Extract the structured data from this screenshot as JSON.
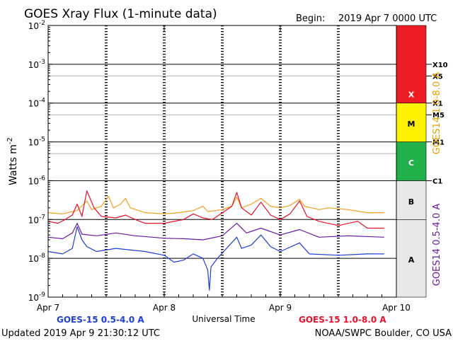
{
  "chart_data": {
    "type": "line",
    "title": "GOES Xray Flux (1-minute data)",
    "begin_label": "Begin:",
    "begin_value": "2019 Apr 7 0000 UTC",
    "ylabel": "Watts m",
    "ylabel_sup": "-2",
    "xlabel": "Universal Time",
    "yscale": "log",
    "ylim": [
      1e-09,
      0.01
    ],
    "xlim": [
      "2019-04-07T00:00",
      "2019-04-10T00:00"
    ],
    "y_ticks": [
      {
        "value": 1e-09,
        "label": "10",
        "exp": "-9"
      },
      {
        "value": 1e-08,
        "label": "10",
        "exp": "-8"
      },
      {
        "value": 1e-07,
        "label": "10",
        "exp": "-7"
      },
      {
        "value": 1e-06,
        "label": "10",
        "exp": "-6"
      },
      {
        "value": 1e-05,
        "label": "10",
        "exp": "-5"
      },
      {
        "value": 0.0001,
        "label": "10",
        "exp": "-4"
      },
      {
        "value": 0.001,
        "label": "10",
        "exp": "-3"
      },
      {
        "value": 0.01,
        "label": "10",
        "exp": "-2"
      }
    ],
    "x_ticks": [
      {
        "value": "2019-04-07T00:00",
        "label": "Apr 7"
      },
      {
        "value": "2019-04-08T00:00",
        "label": "Apr 8"
      },
      {
        "value": "2019-04-09T00:00",
        "label": "Apr 9"
      },
      {
        "value": "2019-04-10T00:00",
        "label": "Apr 10"
      }
    ],
    "flare_classes": [
      {
        "label": "A",
        "from": 1e-09,
        "to": 1e-07,
        "color": "#e8e8e8"
      },
      {
        "label": "B",
        "from": 1e-07,
        "to": 1e-06,
        "color": "#e8e8e8"
      },
      {
        "label": "C",
        "from": 1e-06,
        "to": 1e-05,
        "color": "#22b04a"
      },
      {
        "label": "M",
        "from": 1e-05,
        "to": 0.0001,
        "color": "#fff200"
      },
      {
        "label": "X",
        "from": 0.0001,
        "to": 0.01,
        "color": "#ee1c24"
      }
    ],
    "class_markers": [
      {
        "label": "X10",
        "value": 0.001
      },
      {
        "label": "X5",
        "value": 0.0005
      },
      {
        "label": "X1",
        "value": 0.0001
      },
      {
        "label": "M5",
        "value": 5e-05
      },
      {
        "label": "M1",
        "value": 1e-05
      },
      {
        "label": "C1",
        "value": 1e-06
      }
    ],
    "right_labels": [
      {
        "text": "GOES14 1.0-8.0 A",
        "color": "#e8a000"
      },
      {
        "text": "GOES14 0.5-4.0 A",
        "color": "#6a1aa0"
      }
    ],
    "legend": [
      {
        "text": "GOES-15 0.5-4.0 A",
        "color": "#1c3fd6"
      },
      {
        "text": "GOES-15 1.0-8.0 A",
        "color": "#e8102a"
      }
    ],
    "series": [
      {
        "color": "#f2a020",
        "points": [
          [
            "2019-04-07T00:00",
            1.5e-07
          ],
          [
            "2019-04-07T03:00",
            1.4e-07
          ],
          [
            "2019-04-07T06:00",
            1.7e-07
          ],
          [
            "2019-04-07T08:00",
            3e-07
          ],
          [
            "2019-04-07T09:00",
            1.8e-07
          ],
          [
            "2019-04-07T11:00",
            2.2e-07
          ],
          [
            "2019-04-07T12:30",
            4e-07
          ],
          [
            "2019-04-07T13:30",
            2e-07
          ],
          [
            "2019-04-07T15:00",
            2.5e-07
          ],
          [
            "2019-04-07T16:00",
            3.5e-07
          ],
          [
            "2019-04-07T17:00",
            2e-07
          ],
          [
            "2019-04-07T20:00",
            1.5e-07
          ],
          [
            "2019-04-08T00:00",
            1.4e-07
          ],
          [
            "2019-04-08T03:00",
            1.5e-07
          ],
          [
            "2019-04-08T06:00",
            1.7e-07
          ],
          [
            "2019-04-08T08:00",
            2.2e-07
          ],
          [
            "2019-04-08T09:00",
            1.6e-07
          ],
          [
            "2019-04-08T12:00",
            1.8e-07
          ],
          [
            "2019-04-08T14:00",
            2.2e-07
          ],
          [
            "2019-04-08T15:00",
            3.8e-07
          ],
          [
            "2019-04-08T16:00",
            2e-07
          ],
          [
            "2019-04-08T18:00",
            2.5e-07
          ],
          [
            "2019-04-08T20:00",
            3.5e-07
          ],
          [
            "2019-04-08T22:00",
            2.2e-07
          ],
          [
            "2019-04-09T00:00",
            2e-07
          ],
          [
            "2019-04-09T02:00",
            2.3e-07
          ],
          [
            "2019-04-09T04:00",
            3.3e-07
          ],
          [
            "2019-04-09T05:00",
            2.2e-07
          ],
          [
            "2019-04-09T08:00",
            1.8e-07
          ],
          [
            "2019-04-09T10:00",
            2e-07
          ],
          [
            "2019-04-09T14:00",
            1.8e-07
          ],
          [
            "2019-04-09T18:00",
            1.5e-07
          ],
          [
            "2019-04-09T21:30",
            1.5e-07
          ]
        ]
      },
      {
        "color": "#e8102a",
        "points": [
          [
            "2019-04-07T00:00",
            9e-08
          ],
          [
            "2019-04-07T02:00",
            8e-08
          ],
          [
            "2019-04-07T03:30",
            1e-07
          ],
          [
            "2019-04-07T05:00",
            1.3e-07
          ],
          [
            "2019-04-07T06:00",
            2.5e-07
          ],
          [
            "2019-04-07T07:00",
            1.2e-07
          ],
          [
            "2019-04-07T08:00",
            5.5e-07
          ],
          [
            "2019-04-07T09:30",
            2e-07
          ],
          [
            "2019-04-07T11:00",
            1.2e-07
          ],
          [
            "2019-04-07T14:00",
            1.1e-07
          ],
          [
            "2019-04-07T16:00",
            1.3e-07
          ],
          [
            "2019-04-07T18:00",
            1e-07
          ],
          [
            "2019-04-07T20:00",
            8e-08
          ],
          [
            "2019-04-08T00:00",
            8e-08
          ],
          [
            "2019-04-08T04:00",
            1e-07
          ],
          [
            "2019-04-08T06:00",
            1.4e-07
          ],
          [
            "2019-04-08T08:00",
            1.1e-07
          ],
          [
            "2019-04-08T10:00",
            1e-07
          ],
          [
            "2019-04-08T14:00",
            2.2e-07
          ],
          [
            "2019-04-08T15:00",
            5e-07
          ],
          [
            "2019-04-08T16:00",
            2e-07
          ],
          [
            "2019-04-08T18:00",
            1.3e-07
          ],
          [
            "2019-04-08T20:00",
            2.8e-07
          ],
          [
            "2019-04-08T22:00",
            1.3e-07
          ],
          [
            "2019-04-09T00:00",
            1e-07
          ],
          [
            "2019-04-09T02:00",
            1.4e-07
          ],
          [
            "2019-04-09T04:00",
            3e-07
          ],
          [
            "2019-04-09T05:30",
            1.2e-07
          ],
          [
            "2019-04-09T08:00",
            9e-08
          ],
          [
            "2019-04-09T12:00",
            7e-08
          ],
          [
            "2019-04-09T16:00",
            9e-08
          ],
          [
            "2019-04-09T18:00",
            6e-08
          ],
          [
            "2019-04-09T21:30",
            6e-08
          ]
        ]
      },
      {
        "color": "#6a1aa0",
        "points": [
          [
            "2019-04-07T00:00",
            3.5e-08
          ],
          [
            "2019-04-07T03:00",
            3.2e-08
          ],
          [
            "2019-04-07T05:00",
            4.5e-08
          ],
          [
            "2019-04-07T06:00",
            8e-08
          ],
          [
            "2019-04-07T07:00",
            4.2e-08
          ],
          [
            "2019-04-07T10:00",
            3.8e-08
          ],
          [
            "2019-04-07T14:00",
            4.5e-08
          ],
          [
            "2019-04-07T18:00",
            3.8e-08
          ],
          [
            "2019-04-08T00:00",
            3.3e-08
          ],
          [
            "2019-04-08T04:00",
            3.2e-08
          ],
          [
            "2019-04-08T08:00",
            3e-08
          ],
          [
            "2019-04-08T12:00",
            3.8e-08
          ],
          [
            "2019-04-08T15:00",
            8e-08
          ],
          [
            "2019-04-08T17:00",
            4.5e-08
          ],
          [
            "2019-04-08T20:00",
            6e-08
          ],
          [
            "2019-04-09T00:00",
            4e-08
          ],
          [
            "2019-04-09T04:00",
            5.5e-08
          ],
          [
            "2019-04-09T08:00",
            3.5e-08
          ],
          [
            "2019-04-09T14:00",
            3.8e-08
          ],
          [
            "2019-04-09T21:30",
            3.5e-08
          ]
        ]
      },
      {
        "color": "#1c3fd6",
        "points": [
          [
            "2019-04-07T00:00",
            1.5e-08
          ],
          [
            "2019-04-07T03:00",
            1.3e-08
          ],
          [
            "2019-04-07T05:00",
            1.8e-08
          ],
          [
            "2019-04-07T06:00",
            6.5e-08
          ],
          [
            "2019-04-07T07:00",
            3e-08
          ],
          [
            "2019-04-07T08:00",
            2e-08
          ],
          [
            "2019-04-07T10:00",
            1.5e-08
          ],
          [
            "2019-04-07T14:00",
            1.8e-08
          ],
          [
            "2019-04-07T20:00",
            1.5e-08
          ],
          [
            "2019-04-08T00:00",
            1.2e-08
          ],
          [
            "2019-04-08T02:00",
            8e-09
          ],
          [
            "2019-04-08T04:00",
            9e-09
          ],
          [
            "2019-04-08T06:00",
            1.3e-08
          ],
          [
            "2019-04-08T08:00",
            1e-08
          ],
          [
            "2019-04-08T09:00",
            5e-09
          ],
          [
            "2019-04-08T09:20",
            1.5e-09
          ],
          [
            "2019-04-08T09:40",
            6e-09
          ],
          [
            "2019-04-08T11:00",
            1e-08
          ],
          [
            "2019-04-08T15:00",
            3.5e-08
          ],
          [
            "2019-04-08T16:00",
            1.8e-08
          ],
          [
            "2019-04-08T18:00",
            2.2e-08
          ],
          [
            "2019-04-08T20:00",
            4e-08
          ],
          [
            "2019-04-08T22:00",
            2e-08
          ],
          [
            "2019-04-09T00:00",
            1.5e-08
          ],
          [
            "2019-04-09T04:00",
            2.5e-08
          ],
          [
            "2019-04-09T06:00",
            1.3e-08
          ],
          [
            "2019-04-09T12:00",
            1.2e-08
          ],
          [
            "2019-04-09T18:00",
            1.3e-08
          ],
          [
            "2019-04-09T21:30",
            1.3e-08
          ]
        ]
      }
    ]
  },
  "footer": {
    "updated": "Updated 2019 Apr  9 21:30:12 UTC",
    "credit": "NOAA/SWPC Boulder, CO USA"
  }
}
